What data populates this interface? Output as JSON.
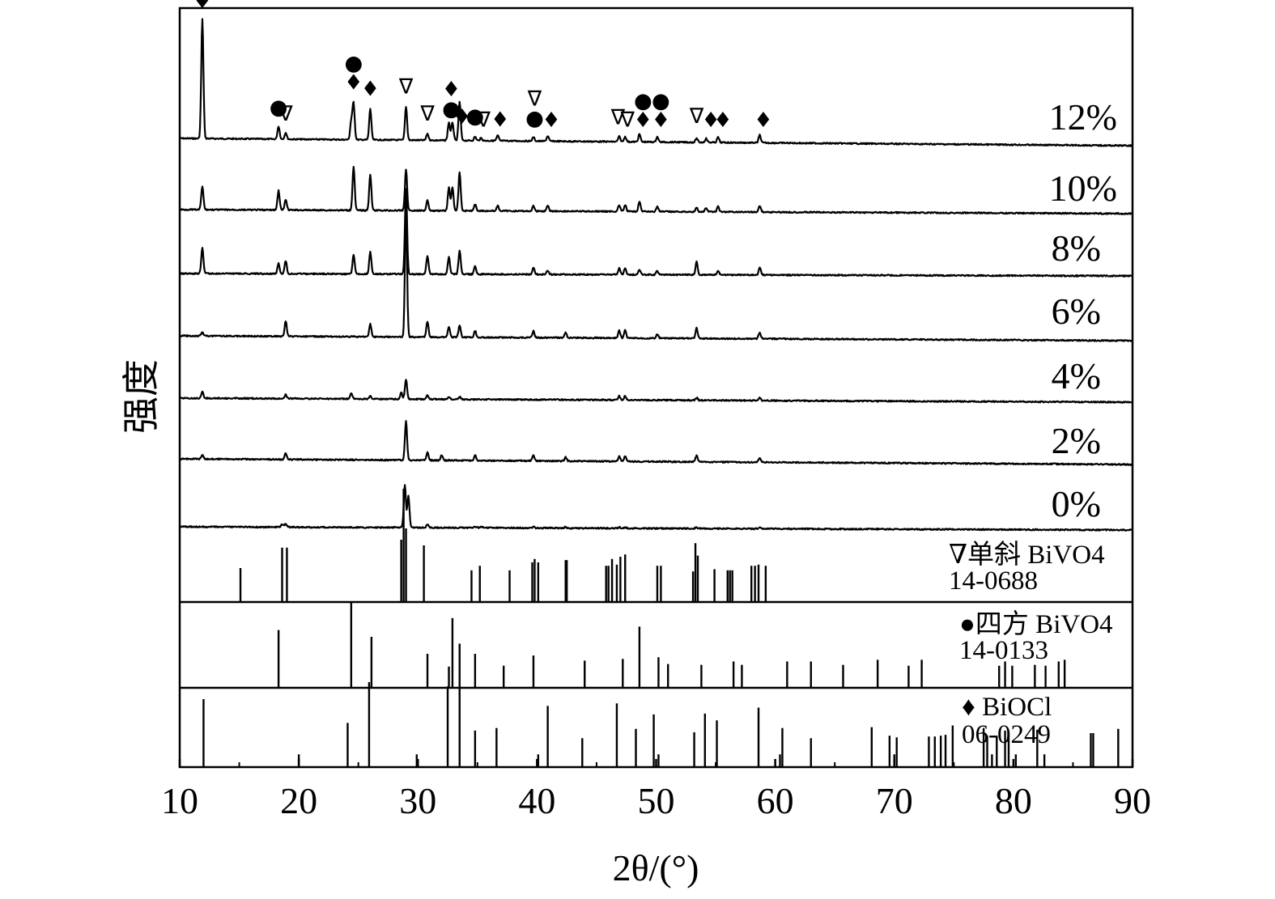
{
  "chart_data": {
    "type": "line",
    "xlabel": "2θ/(°)",
    "ylabel": "强度",
    "xlim": [
      10,
      90
    ],
    "x_ticks": [
      "10",
      "20",
      "30",
      "40",
      "50",
      "60",
      "70",
      "80",
      "90"
    ],
    "series": [
      {
        "name": "12%",
        "peaks": [
          [
            11.9,
            0.92
          ],
          [
            18.3,
            0.1
          ],
          [
            18.9,
            0.05
          ],
          [
            24.4,
            0.14
          ],
          [
            24.6,
            0.28
          ],
          [
            26.0,
            0.24
          ],
          [
            29.0,
            0.26
          ],
          [
            30.8,
            0.05
          ],
          [
            32.6,
            0.14
          ],
          [
            32.9,
            0.14
          ],
          [
            33.5,
            0.3
          ],
          [
            34.8,
            0.03
          ],
          [
            35.3,
            0.02
          ],
          [
            36.7,
            0.04
          ],
          [
            39.7,
            0.03
          ],
          [
            40.9,
            0.04
          ],
          [
            46.9,
            0.04
          ],
          [
            47.4,
            0.04
          ],
          [
            48.6,
            0.06
          ],
          [
            50.1,
            0.04
          ],
          [
            53.4,
            0.03
          ],
          [
            54.2,
            0.03
          ],
          [
            55.2,
            0.04
          ],
          [
            58.7,
            0.06
          ]
        ]
      },
      {
        "name": "10%",
        "peaks": [
          [
            11.9,
            0.18
          ],
          [
            18.3,
            0.15
          ],
          [
            18.9,
            0.08
          ],
          [
            24.6,
            0.34
          ],
          [
            26.0,
            0.28
          ],
          [
            29.0,
            0.32
          ],
          [
            30.8,
            0.08
          ],
          [
            32.6,
            0.18
          ],
          [
            32.9,
            0.18
          ],
          [
            33.5,
            0.3
          ],
          [
            34.8,
            0.05
          ],
          [
            36.7,
            0.04
          ],
          [
            39.7,
            0.04
          ],
          [
            40.9,
            0.04
          ],
          [
            46.9,
            0.05
          ],
          [
            47.4,
            0.05
          ],
          [
            48.6,
            0.08
          ],
          [
            50.1,
            0.04
          ],
          [
            53.4,
            0.03
          ],
          [
            54.2,
            0.03
          ],
          [
            55.2,
            0.04
          ],
          [
            58.7,
            0.05
          ]
        ]
      },
      {
        "name": "8%",
        "peaks": [
          [
            11.9,
            0.2
          ],
          [
            18.3,
            0.08
          ],
          [
            18.9,
            0.1
          ],
          [
            24.6,
            0.15
          ],
          [
            26.0,
            0.17
          ],
          [
            29.0,
            0.66
          ],
          [
            30.8,
            0.14
          ],
          [
            32.6,
            0.13
          ],
          [
            33.5,
            0.18
          ],
          [
            34.8,
            0.06
          ],
          [
            39.7,
            0.05
          ],
          [
            40.9,
            0.03
          ],
          [
            46.9,
            0.05
          ],
          [
            47.4,
            0.05
          ],
          [
            48.6,
            0.04
          ],
          [
            50.1,
            0.03
          ],
          [
            53.4,
            0.1
          ],
          [
            55.2,
            0.03
          ],
          [
            58.7,
            0.06
          ]
        ]
      },
      {
        "name": "6%",
        "peaks": [
          [
            11.9,
            0.03
          ],
          [
            18.9,
            0.12
          ],
          [
            26.0,
            0.1
          ],
          [
            29.0,
            0.98
          ],
          [
            30.8,
            0.12
          ],
          [
            32.6,
            0.08
          ],
          [
            33.5,
            0.09
          ],
          [
            34.8,
            0.05
          ],
          [
            39.7,
            0.05
          ],
          [
            42.4,
            0.04
          ],
          [
            46.9,
            0.06
          ],
          [
            47.4,
            0.06
          ],
          [
            50.1,
            0.03
          ],
          [
            53.4,
            0.08
          ],
          [
            58.7,
            0.05
          ]
        ]
      },
      {
        "name": "4%",
        "peaks": [
          [
            11.9,
            0.05
          ],
          [
            18.9,
            0.03
          ],
          [
            24.4,
            0.04
          ],
          [
            26.0,
            0.02
          ],
          [
            28.6,
            0.05
          ],
          [
            29.0,
            0.15
          ],
          [
            30.8,
            0.03
          ],
          [
            32.6,
            0.02
          ],
          [
            33.5,
            0.02
          ],
          [
            46.9,
            0.03
          ],
          [
            47.4,
            0.03
          ],
          [
            53.4,
            0.02
          ],
          [
            58.7,
            0.02
          ]
        ]
      },
      {
        "name": "2%",
        "peaks": [
          [
            11.9,
            0.03
          ],
          [
            18.9,
            0.05
          ],
          [
            29.0,
            0.3
          ],
          [
            30.8,
            0.06
          ],
          [
            32.0,
            0.04
          ],
          [
            34.8,
            0.04
          ],
          [
            39.7,
            0.04
          ],
          [
            42.4,
            0.03
          ],
          [
            46.9,
            0.04
          ],
          [
            47.4,
            0.04
          ],
          [
            53.4,
            0.05
          ],
          [
            58.7,
            0.03
          ]
        ]
      },
      {
        "name": "0%",
        "peaks": [
          [
            18.6,
            0.05
          ],
          [
            18.9,
            0.06
          ],
          [
            28.9,
            0.75
          ],
          [
            29.2,
            0.55
          ],
          [
            30.8,
            0.05
          ],
          [
            34.8,
            0.02
          ],
          [
            35.3,
            0.02
          ],
          [
            39.7,
            0.02
          ],
          [
            42.4,
            0.02
          ],
          [
            46.9,
            0.02
          ],
          [
            47.4,
            0.02
          ],
          [
            53.4,
            0.02
          ],
          [
            58.7,
            0.02
          ]
        ]
      }
    ],
    "reference_patterns": [
      {
        "name": "∇单斜 BiVO4",
        "card": "14-0688",
        "lines": [
          [
            15.1,
            0.3
          ],
          [
            18.6,
            0.48
          ],
          [
            19.0,
            0.48
          ],
          [
            28.6,
            0.55
          ],
          [
            28.8,
            1.0
          ],
          [
            29.0,
            0.65
          ],
          [
            30.5,
            0.5
          ],
          [
            34.5,
            0.28
          ],
          [
            35.2,
            0.32
          ],
          [
            37.7,
            0.28
          ],
          [
            39.6,
            0.35
          ],
          [
            39.8,
            0.38
          ],
          [
            40.1,
            0.35
          ],
          [
            42.4,
            0.37
          ],
          [
            42.5,
            0.37
          ],
          [
            45.8,
            0.32
          ],
          [
            46.0,
            0.32
          ],
          [
            46.3,
            0.38
          ],
          [
            46.7,
            0.33
          ],
          [
            47.0,
            0.4
          ],
          [
            47.4,
            0.42
          ],
          [
            50.1,
            0.32
          ],
          [
            50.4,
            0.32
          ],
          [
            53.1,
            0.27
          ],
          [
            53.3,
            0.52
          ],
          [
            53.5,
            0.41
          ],
          [
            54.9,
            0.29
          ],
          [
            56.0,
            0.28
          ],
          [
            56.2,
            0.28
          ],
          [
            56.4,
            0.28
          ],
          [
            58.0,
            0.32
          ],
          [
            58.3,
            0.32
          ],
          [
            58.6,
            0.33
          ],
          [
            59.2,
            0.32
          ]
        ]
      },
      {
        "name": "●四方 BiVO4",
        "card": "14-0133",
        "lines": [
          [
            18.3,
            0.68
          ],
          [
            24.4,
            1.0
          ],
          [
            26.1,
            0.6
          ],
          [
            30.8,
            0.4
          ],
          [
            32.6,
            0.25
          ],
          [
            32.9,
            0.82
          ],
          [
            33.5,
            0.52
          ],
          [
            34.8,
            0.4
          ],
          [
            37.2,
            0.26
          ],
          [
            39.7,
            0.38
          ],
          [
            44.0,
            0.32
          ],
          [
            47.2,
            0.34
          ],
          [
            48.6,
            0.72
          ],
          [
            50.2,
            0.36
          ],
          [
            51.0,
            0.28
          ],
          [
            53.8,
            0.27
          ],
          [
            56.5,
            0.31
          ],
          [
            57.2,
            0.27
          ],
          [
            61.0,
            0.31
          ],
          [
            63.0,
            0.31
          ],
          [
            65.7,
            0.27
          ],
          [
            68.6,
            0.33
          ],
          [
            71.2,
            0.26
          ],
          [
            72.3,
            0.33
          ],
          [
            78.8,
            0.26
          ],
          [
            79.3,
            0.31
          ],
          [
            79.9,
            0.26
          ],
          [
            81.8,
            0.27
          ],
          [
            82.7,
            0.26
          ],
          [
            83.8,
            0.31
          ],
          [
            84.3,
            0.33
          ]
        ]
      },
      {
        "name": "♦ BiOCl",
        "card": "06-0249",
        "lines": [
          [
            12.0,
            0.8
          ],
          [
            20.0,
            0.15
          ],
          [
            24.1,
            0.52
          ],
          [
            25.9,
            1.0
          ],
          [
            29.9,
            0.15
          ],
          [
            32.5,
            0.95
          ],
          [
            33.5,
            0.95
          ],
          [
            34.8,
            0.43
          ],
          [
            36.6,
            0.46
          ],
          [
            40.1,
            0.15
          ],
          [
            40.9,
            0.72
          ],
          [
            43.8,
            0.34
          ],
          [
            46.7,
            0.75
          ],
          [
            48.3,
            0.45
          ],
          [
            49.8,
            0.62
          ],
          [
            50.2,
            0.15
          ],
          [
            53.2,
            0.41
          ],
          [
            54.1,
            0.63
          ],
          [
            55.1,
            0.55
          ],
          [
            58.6,
            0.7
          ],
          [
            60.4,
            0.15
          ],
          [
            60.6,
            0.46
          ],
          [
            63.0,
            0.34
          ],
          [
            68.1,
            0.47
          ],
          [
            69.6,
            0.37
          ],
          [
            70.0,
            0.15
          ],
          [
            70.2,
            0.35
          ],
          [
            72.9,
            0.36
          ],
          [
            73.4,
            0.36
          ],
          [
            73.9,
            0.37
          ],
          [
            74.3,
            0.38
          ],
          [
            74.9,
            0.49
          ],
          [
            77.5,
            0.46
          ],
          [
            77.8,
            0.37
          ],
          [
            78.2,
            0.15
          ],
          [
            78.6,
            0.37
          ],
          [
            79.3,
            0.43
          ],
          [
            79.6,
            0.37
          ],
          [
            80.2,
            0.15
          ],
          [
            82.0,
            0.44
          ],
          [
            82.6,
            0.15
          ],
          [
            86.5,
            0.4
          ],
          [
            86.7,
            0.4
          ],
          [
            88.8,
            0.45
          ]
        ]
      }
    ],
    "markers": [
      {
        "series": "12%",
        "x": 11.9,
        "symbol": "♦"
      },
      {
        "series": "12%",
        "x": 18.3,
        "symbol": "●"
      },
      {
        "series": "12%",
        "x": 18.9,
        "symbol": "∇"
      },
      {
        "series": "12%",
        "x": 24.6,
        "symbol": "♦"
      },
      {
        "series": "12%",
        "x": 24.6,
        "symbol": "●"
      },
      {
        "series": "12%",
        "x": 26.0,
        "symbol": "♦"
      },
      {
        "series": "12%",
        "x": 29.0,
        "symbol": "∇"
      },
      {
        "series": "12%",
        "x": 30.8,
        "symbol": "∇"
      },
      {
        "series": "12%",
        "x": 32.8,
        "symbol": "●"
      },
      {
        "series": "12%",
        "x": 32.8,
        "symbol": "♦"
      },
      {
        "series": "12%",
        "x": 33.7,
        "symbol": "♦"
      },
      {
        "series": "12%",
        "x": 34.8,
        "symbol": "●"
      },
      {
        "series": "12%",
        "x": 35.5,
        "symbol": "∇"
      },
      {
        "series": "12%",
        "x": 36.9,
        "symbol": "♦"
      },
      {
        "series": "12%",
        "x": 39.8,
        "symbol": "●"
      },
      {
        "series": "12%",
        "x": 39.8,
        "symbol": "∇"
      },
      {
        "series": "12%",
        "x": 41.2,
        "symbol": "♦"
      },
      {
        "series": "12%",
        "x": 46.8,
        "symbol": "∇"
      },
      {
        "series": "12%",
        "x": 47.6,
        "symbol": "∇"
      },
      {
        "series": "12%",
        "x": 48.9,
        "symbol": "♦"
      },
      {
        "series": "12%",
        "x": 48.9,
        "symbol": "●"
      },
      {
        "series": "12%",
        "x": 50.4,
        "symbol": "♦"
      },
      {
        "series": "12%",
        "x": 50.4,
        "symbol": "●"
      },
      {
        "series": "12%",
        "x": 53.4,
        "symbol": "∇"
      },
      {
        "series": "12%",
        "x": 54.6,
        "symbol": "♦"
      },
      {
        "series": "12%",
        "x": 55.6,
        "symbol": "♦"
      },
      {
        "series": "12%",
        "x": 59.0,
        "symbol": "♦"
      }
    ],
    "grid": false,
    "line_color": "#000000"
  }
}
